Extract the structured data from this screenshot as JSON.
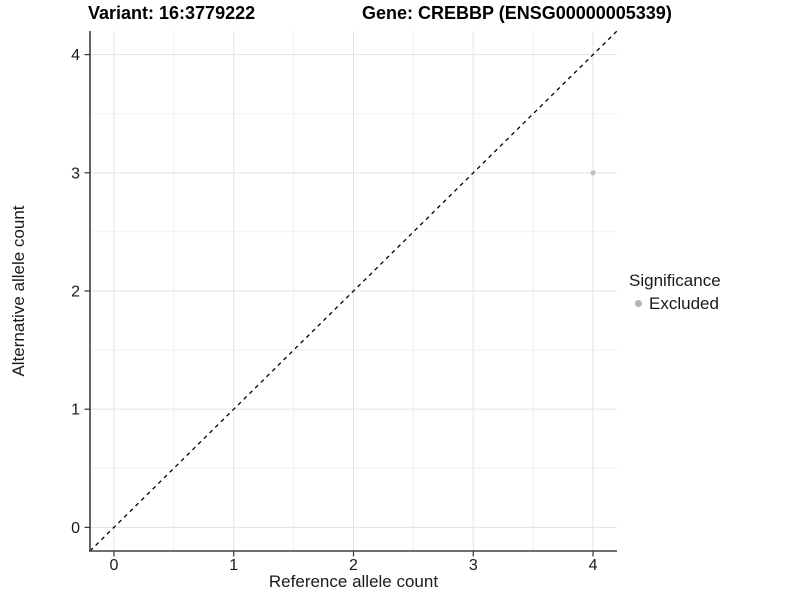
{
  "chart_data": {
    "type": "scatter",
    "title_left": "Variant: 16:3779222",
    "title_right": "Gene: CREBBP (ENSG00000005339)",
    "xlabel": "Reference allele count",
    "ylabel": "Alternative allele count",
    "xlim": [
      -0.2,
      4.2
    ],
    "ylim": [
      -0.2,
      4.2
    ],
    "x_ticks": [
      0,
      1,
      2,
      3,
      4
    ],
    "y_ticks": [
      0,
      1,
      2,
      3,
      4
    ],
    "x_minor_ticks": [
      0.5,
      1.5,
      2.5,
      3.5
    ],
    "y_minor_ticks": [
      0.5,
      1.5,
      2.5,
      3.5
    ],
    "grid": "major+minor",
    "reference_line": {
      "kind": "abline",
      "intercept": 0,
      "slope": 1,
      "linetype": "dashed",
      "color": "#000000"
    },
    "series": [
      {
        "name": "Excluded",
        "color": "#bebebe",
        "point_radius": 2.5,
        "points": [
          {
            "x": 4,
            "y": 3
          }
        ]
      }
    ],
    "legend": {
      "title": "Significance",
      "position": "right",
      "entries": [
        {
          "label": "Excluded",
          "color": "#b3b3b3"
        }
      ]
    },
    "style": {
      "grid_major_color": "#e3e3e3",
      "grid_minor_color": "#f1f1f1",
      "axis_line_color": "#404040",
      "tick_color": "#333333",
      "text_color": "#1a1a1a",
      "background": "#ffffff"
    }
  }
}
